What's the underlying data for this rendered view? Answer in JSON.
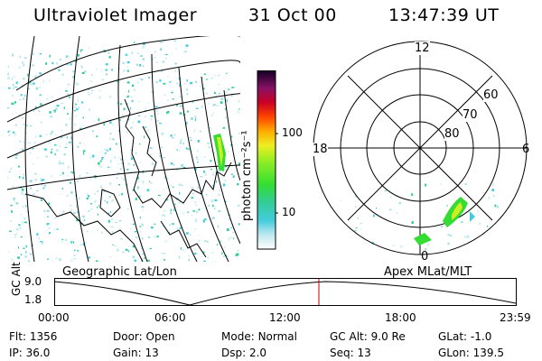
{
  "header": {
    "title": "Ultraviolet Imager",
    "date": "31 Oct 00",
    "time": "13:47:39 UT"
  },
  "colorbar": {
    "label": "photon cm⁻²s⁻¹",
    "ticks": [
      "100",
      "10"
    ]
  },
  "polar": {
    "mlt_labels": {
      "top": "12",
      "left": "18",
      "right": "6",
      "bottom": "0"
    },
    "lat_labels": [
      "60",
      "70",
      "80"
    ]
  },
  "projection_labels": {
    "left": "Geographic Lat/Lon",
    "right": "Apex MLat/MLT"
  },
  "alt_plot": {
    "axis_title": "GC Alt",
    "y_ticks": [
      "9.0",
      "1.8"
    ],
    "x_ticks": [
      "00:00",
      "06:00",
      "12:00",
      "18:00",
      "23:59"
    ]
  },
  "info": {
    "row1": [
      {
        "key": "Flt:",
        "value": "1356"
      },
      {
        "key": "Door:",
        "value": "Open"
      },
      {
        "key": "Mode:",
        "value": "Normal"
      },
      {
        "key": "GC Alt:",
        "value": "9.0 Re"
      },
      {
        "key": "GLat:",
        "value": "-1.0"
      }
    ],
    "row2": [
      {
        "key": "IP:",
        "value": "36.0"
      },
      {
        "key": "Gain:",
        "value": "13"
      },
      {
        "key": "Dsp:",
        "value": "2.0"
      },
      {
        "key": "Seq:",
        "value": "13"
      },
      {
        "key": "GLon:",
        "value": "139.5"
      }
    ]
  },
  "colors": {
    "aurora_green": "#33dd33",
    "aurora_yellow": "#ccee22",
    "noise_cyan": "#44ccdd",
    "marker_red": "#cc0000"
  }
}
